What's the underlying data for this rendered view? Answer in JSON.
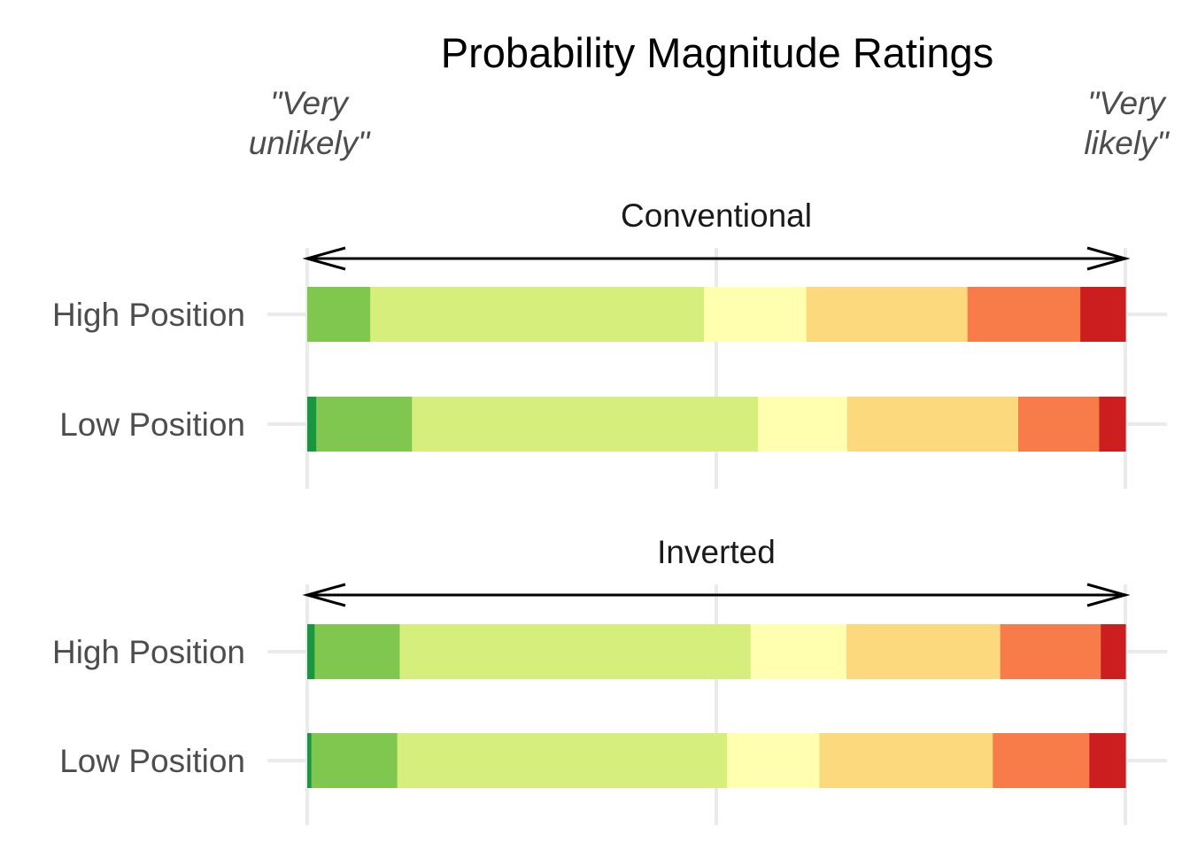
{
  "chart_data": {
    "type": "bar",
    "orientation": "horizontal",
    "stacked": "proportion",
    "title": "Probability Magnitude Ratings",
    "left_anchor_label": [
      "\"Very",
      "unlikely\""
    ],
    "right_anchor_label": [
      "\"Very",
      "likely\""
    ],
    "xlim": [
      0,
      1
    ],
    "grid": true,
    "legend": "none",
    "segment_colors": [
      "#1a9641",
      "#80c750",
      "#d5ee7c",
      "#ffffaf",
      "#fcd97c",
      "#f87b4a",
      "#cc1d1f"
    ],
    "panels": [
      {
        "label": "Conventional",
        "bars": [
          {
            "category": "High Position",
            "proportions": [
              0.0,
              0.077,
              0.408,
              0.125,
              0.197,
              0.138,
              0.055
            ]
          },
          {
            "category": "Low Position",
            "proportions": [
              0.011,
              0.117,
              0.423,
              0.109,
              0.209,
              0.099,
              0.032
            ]
          }
        ]
      },
      {
        "label": "Inverted",
        "bars": [
          {
            "category": "High Position",
            "proportions": [
              0.009,
              0.104,
              0.429,
              0.117,
              0.188,
              0.123,
              0.03
            ]
          },
          {
            "category": "Low Position",
            "proportions": [
              0.005,
              0.105,
              0.403,
              0.113,
              0.212,
              0.118,
              0.044
            ]
          }
        ]
      }
    ]
  }
}
